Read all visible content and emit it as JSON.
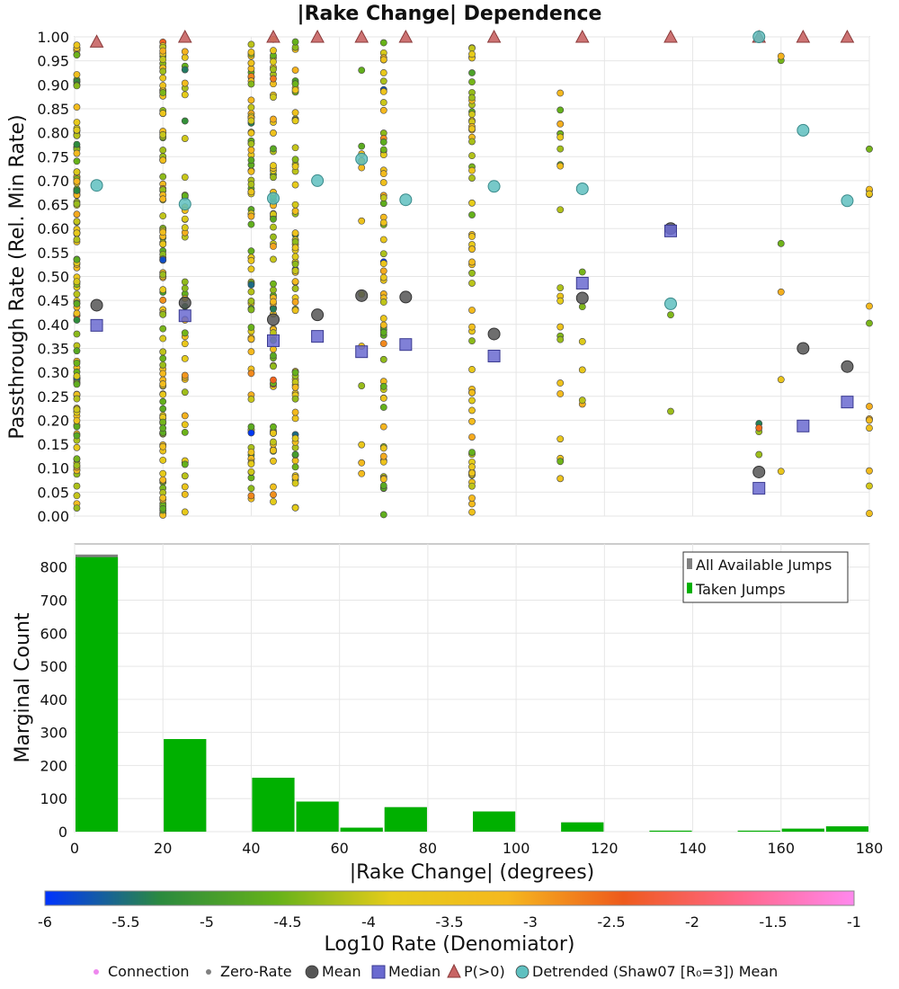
{
  "chart_data": [
    {
      "type": "scatter",
      "title": "|Rake Change| Dependence",
      "ylabel": "Passthrough Rate (Rel. Min Rate)",
      "xlim": [
        0,
        180
      ],
      "ylim": [
        0,
        1
      ],
      "y_ticks": [
        "0.00",
        "0.05",
        "0.10",
        "0.15",
        "0.20",
        "0.25",
        "0.30",
        "0.35",
        "0.40",
        "0.45",
        "0.50",
        "0.55",
        "0.60",
        "0.65",
        "0.70",
        "0.75",
        "0.80",
        "0.85",
        "0.90",
        "0.95",
        "1.00"
      ],
      "color_axis": "Log10 Rate (Denomiator)",
      "bin_centers": [
        5,
        25,
        45,
        55,
        65,
        75,
        95,
        115,
        135,
        155,
        165,
        175
      ],
      "series": [
        {
          "name": "Mean",
          "color": "#555555",
          "points": [
            [
              5,
              0.44
            ],
            [
              25,
              0.445
            ],
            [
              45,
              0.41
            ],
            [
              55,
              0.42
            ],
            [
              65,
              0.46
            ],
            [
              75,
              0.457
            ],
            [
              95,
              0.38
            ],
            [
              115,
              0.455
            ],
            [
              135,
              0.6
            ],
            [
              155,
              0.092
            ],
            [
              165,
              0.35
            ],
            [
              175,
              0.312
            ]
          ]
        },
        {
          "name": "Median",
          "color": "#6a6ad0",
          "points": [
            [
              5,
              0.398
            ],
            [
              25,
              0.418
            ],
            [
              45,
              0.366
            ],
            [
              55,
              0.375
            ],
            [
              65,
              0.343
            ],
            [
              75,
              0.358
            ],
            [
              95,
              0.334
            ],
            [
              115,
              0.486
            ],
            [
              135,
              0.595
            ],
            [
              155,
              0.058
            ],
            [
              165,
              0.188
            ],
            [
              175,
              0.238
            ]
          ]
        },
        {
          "name": "P(>0)",
          "color": "#c86464",
          "points": [
            [
              5,
              0.99
            ],
            [
              25,
              1.0
            ],
            [
              45,
              1.0
            ],
            [
              55,
              1.0
            ],
            [
              65,
              1.0
            ],
            [
              75,
              1.0
            ],
            [
              95,
              1.0
            ],
            [
              115,
              1.0
            ],
            [
              135,
              1.0
            ],
            [
              155,
              1.0
            ],
            [
              165,
              1.0
            ],
            [
              175,
              1.0
            ]
          ]
        },
        {
          "name": "Detrended (Shaw07 [R₀=3]) Mean",
          "color": "#5fc0c0",
          "points": [
            [
              5,
              0.69
            ],
            [
              25,
              0.651
            ],
            [
              45,
              0.663
            ],
            [
              55,
              0.7
            ],
            [
              65,
              0.745
            ],
            [
              75,
              0.66
            ],
            [
              95,
              0.688
            ],
            [
              115,
              0.683
            ],
            [
              135,
              0.443
            ],
            [
              155,
              1.0
            ],
            [
              165,
              0.805
            ],
            [
              175,
              0.658
            ]
          ]
        }
      ],
      "scatter_columns": [
        {
          "x": 0.5,
          "count": 120,
          "lo": 0.0,
          "hi": 1.0
        },
        {
          "x": 20,
          "count": 110,
          "lo": 0.0,
          "hi": 1.0
        },
        {
          "x": 25,
          "count": 45,
          "lo": 0.0,
          "hi": 1.0
        },
        {
          "x": 40,
          "count": 85,
          "lo": 0.0,
          "hi": 1.0
        },
        {
          "x": 45,
          "count": 75,
          "lo": 0.0,
          "hi": 1.0
        },
        {
          "x": 50,
          "count": 70,
          "lo": 0.0,
          "hi": 1.0
        },
        {
          "x": 65,
          "count": 12,
          "lo": 0.0,
          "hi": 0.97
        },
        {
          "x": 70,
          "count": 65,
          "lo": 0.0,
          "hi": 1.0
        },
        {
          "x": 90,
          "count": 60,
          "lo": 0.0,
          "hi": 1.0
        },
        {
          "x": 110,
          "count": 22,
          "lo": 0.05,
          "hi": 0.92
        },
        {
          "x": 115,
          "count": 6,
          "lo": 0.0,
          "hi": 0.76
        },
        {
          "x": 135,
          "count": 2,
          "lo": 0.21,
          "hi": 0.6
        },
        {
          "x": 155,
          "count": 4,
          "lo": 0.0,
          "hi": 0.21
        },
        {
          "x": 160,
          "count": 6,
          "lo": 0.07,
          "hi": 1.0
        },
        {
          "x": 180,
          "count": 14,
          "lo": 0.0,
          "hi": 0.79
        }
      ]
    },
    {
      "type": "bar",
      "xlabel": "|Rake Change| (degrees)",
      "ylabel": "Marginal Count",
      "xlim": [
        0,
        180
      ],
      "ylim": [
        0,
        870
      ],
      "x_ticks": [
        "0",
        "20",
        "40",
        "60",
        "80",
        "100",
        "120",
        "140",
        "160",
        "180"
      ],
      "y_ticks": [
        "0",
        "100",
        "200",
        "300",
        "400",
        "500",
        "600",
        "700",
        "800"
      ],
      "bins": [
        [
          0,
          10
        ],
        [
          20,
          30
        ],
        [
          40,
          50
        ],
        [
          50,
          60
        ],
        [
          60,
          70
        ],
        [
          70,
          80
        ],
        [
          90,
          100
        ],
        [
          110,
          120
        ],
        [
          130,
          140
        ],
        [
          150,
          160
        ],
        [
          160,
          170
        ],
        [
          170,
          180
        ]
      ],
      "series": [
        {
          "name": "All Available Jumps",
          "color": "#808080",
          "values": [
            838,
            280,
            163,
            91,
            12,
            74,
            61,
            28,
            3,
            3,
            9,
            16
          ]
        },
        {
          "name": "Taken Jumps",
          "color": "#00b000",
          "values": [
            830,
            280,
            163,
            91,
            12,
            74,
            61,
            28,
            3,
            3,
            9,
            16
          ]
        }
      ]
    }
  ],
  "colorbar": {
    "label": "Log10 Rate (Denomiator)",
    "min": -6,
    "max": -1,
    "ticks": [
      "-6",
      "-5.5",
      "-5",
      "-4.5",
      "-4",
      "-3.5",
      "-3",
      "-2.5",
      "-2",
      "-1.5",
      "-1"
    ],
    "stops": [
      "#0033ff",
      "#2b8a3e",
      "#66b21a",
      "#e6cc1a",
      "#f5b81e",
      "#ee5a1c",
      "#ff6688",
      "#ff88ee"
    ]
  },
  "legend": {
    "items": [
      {
        "label": "Connection",
        "icon": "dot-icon",
        "color": "#ee88ee"
      },
      {
        "label": "Zero-Rate",
        "icon": "dot-icon",
        "color": "#808080"
      },
      {
        "label": "Mean",
        "icon": "circle-icon",
        "color": "#555555"
      },
      {
        "label": "Median",
        "icon": "square-icon",
        "color": "#6a6ad0"
      },
      {
        "label": "P(>0)",
        "icon": "triangle-icon",
        "color": "#c86464"
      },
      {
        "label": "Detrended (Shaw07 [R₀=3]) Mean",
        "icon": "circle-icon",
        "color": "#5fc0c0"
      }
    ]
  }
}
